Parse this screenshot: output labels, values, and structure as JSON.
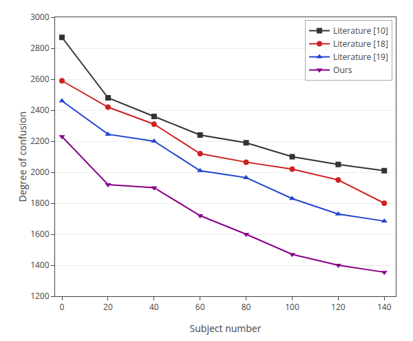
{
  "chart_data": {
    "type": "line",
    "x": [
      0,
      20,
      40,
      60,
      80,
      100,
      120,
      140
    ],
    "series": [
      {
        "name": "Literature [10]",
        "color": "#333333",
        "marker": "square",
        "line_style": "solid",
        "values": [
          2870,
          2480,
          2360,
          2240,
          2190,
          2100,
          2050,
          2010
        ]
      },
      {
        "name": "Literature [18]",
        "color": "#cc2222",
        "marker": "circle",
        "line_style": "solid",
        "values": [
          2590,
          2420,
          2310,
          2120,
          2065,
          2020,
          1950,
          1800
        ]
      },
      {
        "name": "Literature [19]",
        "color": "#2244cc",
        "marker": "triangle-up",
        "line_style": "solid",
        "values": [
          2460,
          2245,
          2200,
          2010,
          1965,
          1830,
          1730,
          1685
        ]
      },
      {
        "name": "Ours",
        "color": "#880088",
        "marker": "triangle-down",
        "line_style": "solid",
        "values": [
          2230,
          1920,
          1900,
          1720,
          1600,
          1470,
          1400,
          1355
        ]
      }
    ],
    "xlabel": "Subject number",
    "ylabel": "Degree of confusion",
    "xlim": [
      -3,
      145
    ],
    "ylim": [
      1200,
      3000
    ],
    "xticks": [
      0,
      20,
      40,
      60,
      80,
      100,
      120,
      140
    ],
    "yticks": [
      1200,
      1400,
      1600,
      1800,
      2000,
      2200,
      2400,
      2600,
      2800,
      3000
    ],
    "grid": "y",
    "legend": "upper right"
  }
}
